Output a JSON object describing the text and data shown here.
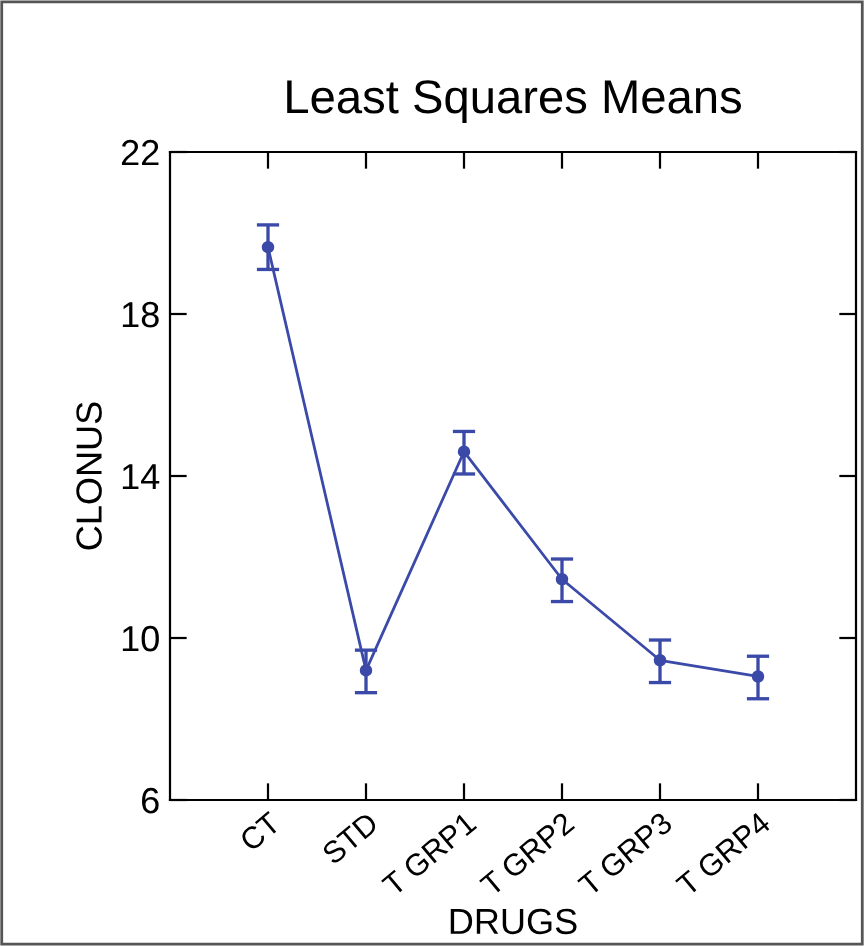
{
  "chart_data": {
    "type": "line",
    "title": "Least Squares Means",
    "xlabel": "DRUGS",
    "ylabel": "CLONUS",
    "categories": [
      "CT",
      "STD",
      "T GRP1",
      "T GRP2",
      "T GRP3",
      "T GRP4"
    ],
    "series": [
      {
        "color": "#3b4aa8",
        "values": [
          19.65,
          9.2,
          14.6,
          11.45,
          9.45,
          9.05
        ],
        "errors": [
          [
            19.1,
            20.2
          ],
          [
            8.65,
            9.7
          ],
          [
            14.05,
            15.1
          ],
          [
            10.9,
            11.95
          ],
          [
            8.9,
            9.95
          ],
          [
            8.5,
            9.55
          ]
        ]
      }
    ],
    "ylim": [
      6,
      22
    ],
    "yticks": [
      6,
      10,
      14,
      18,
      22
    ],
    "marker": "circle",
    "grid": false
  }
}
